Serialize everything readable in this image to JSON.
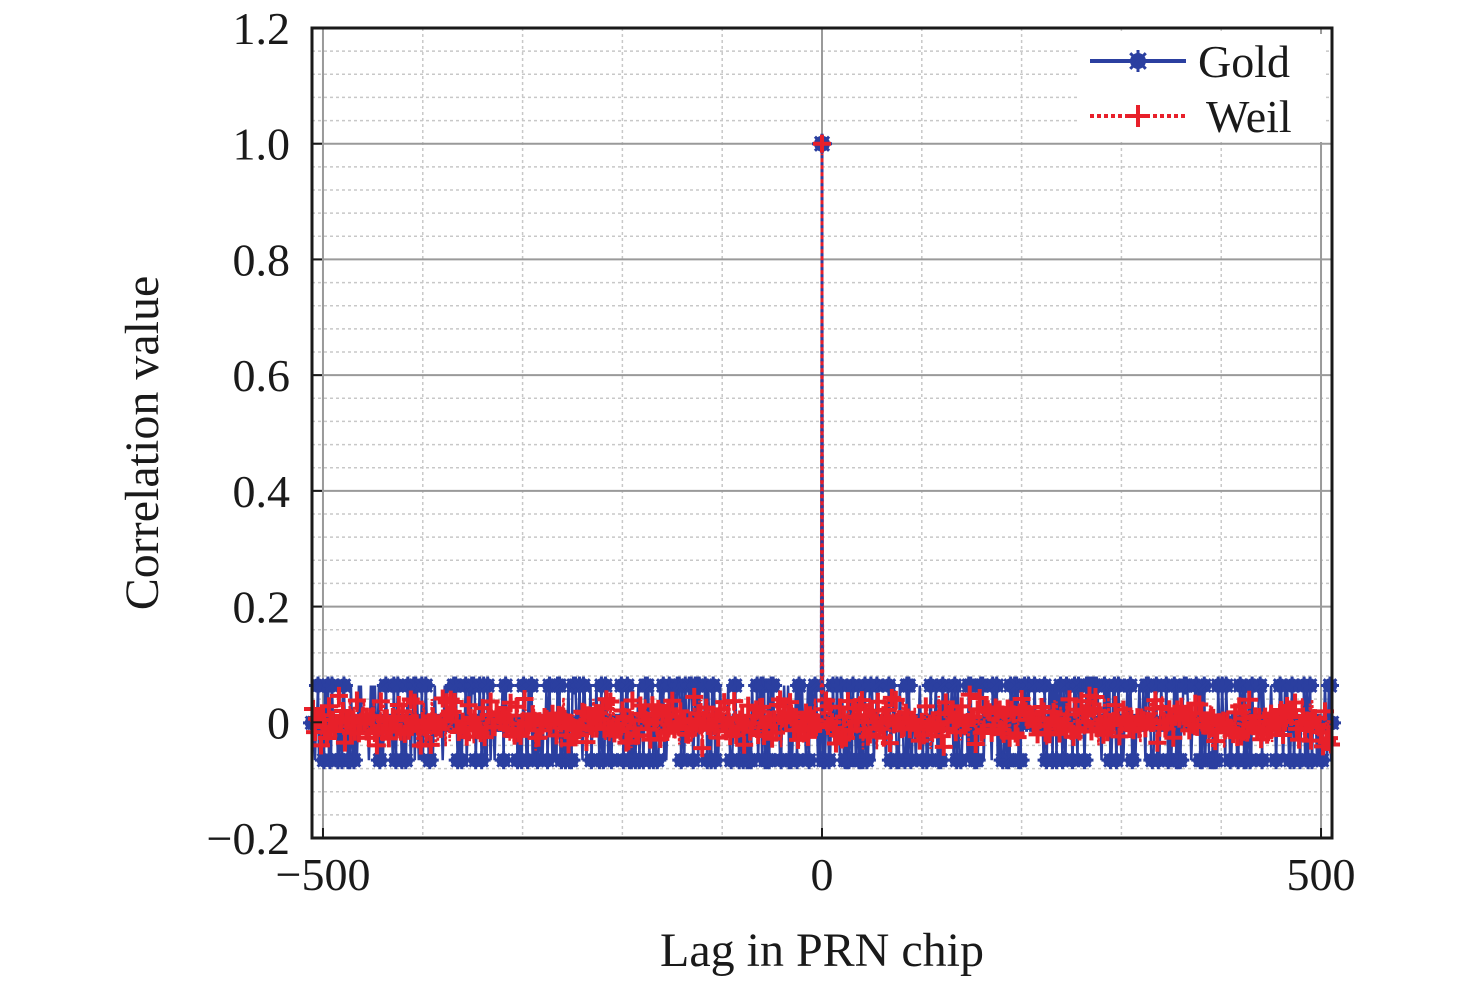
{
  "chart_data": {
    "type": "line",
    "xlabel": "Lag in PRN chip",
    "ylabel": "Correlation value",
    "xlim": [
      -511,
      511
    ],
    "ylim": [
      -0.2,
      1.2
    ],
    "xticks": [
      -500,
      0,
      500
    ],
    "xtick_labels": [
      "−500",
      "0",
      "500"
    ],
    "yticks": [
      -0.2,
      0,
      0.2,
      0.4,
      0.6,
      0.8,
      1.0,
      1.2
    ],
    "ytick_labels": [
      "−0.2",
      "0",
      "0.2",
      "0.4",
      "0.6",
      "0.8",
      "1.0",
      "1.2"
    ],
    "grid": true,
    "legend_position": "top-right",
    "series": [
      {
        "name": "Gold",
        "color": "#2b3fa0",
        "line_style": "solid",
        "marker": "asterisk",
        "peak": {
          "x": 0,
          "y": 1.0
        },
        "sidelobe_levels": [
          0.0635,
          -0.001,
          -0.0655
        ]
      },
      {
        "name": "Weil",
        "color": "#e8202a",
        "line_style": "dotted",
        "marker": "plus",
        "peak": {
          "x": 0,
          "y": 1.0
        },
        "sidelobe_range": [
          -0.05,
          0.05
        ]
      }
    ]
  },
  "colors": {
    "gold": "#2b3fa0",
    "weil": "#e8202a",
    "grid_major": "#9a9a9a",
    "grid_minor": "#c8c8c8",
    "axis": "#1a1a1a"
  }
}
